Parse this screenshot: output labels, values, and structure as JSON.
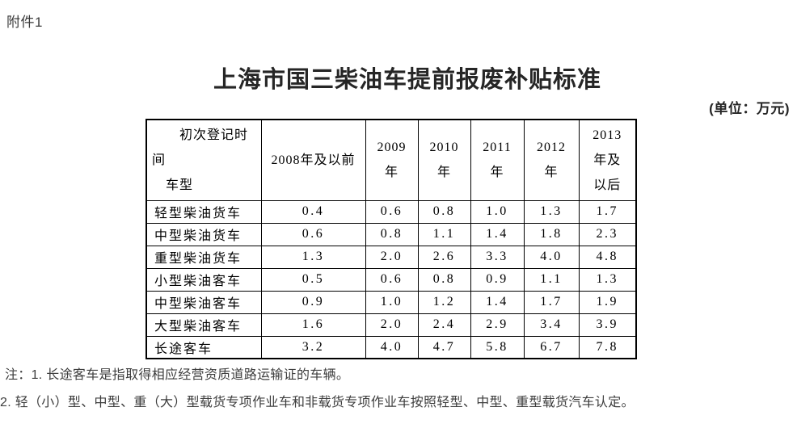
{
  "page": {
    "attachment_label": "附件1",
    "title": "上海市国三柴油车提前报废补贴标准",
    "unit_label": "(单位：万元)"
  },
  "table": {
    "corner_header": "　　初次登记时\n间\n　车型",
    "col_headers": [
      "2008年及以前",
      "2009\n年",
      "2010\n年",
      "2011\n年",
      "2012\n年",
      "2013\n年及\n以后"
    ],
    "rows": [
      {
        "label": "轻型柴油货车",
        "values": [
          "0.4",
          "0.6",
          "0.8",
          "1.0",
          "1.3",
          "1.7"
        ]
      },
      {
        "label": "中型柴油货车",
        "values": [
          "0.6",
          "0.8",
          "1.1",
          "1.4",
          "1.8",
          "2.3"
        ]
      },
      {
        "label": "重型柴油货车",
        "values": [
          "1.3",
          "2.0",
          "2.6",
          "3.3",
          "4.0",
          "4.8"
        ]
      },
      {
        "label": "小型柴油客车",
        "values": [
          "0.5",
          "0.6",
          "0.8",
          "0.9",
          "1.1",
          "1.3"
        ]
      },
      {
        "label": "中型柴油客车",
        "values": [
          "0.9",
          "1.0",
          "1.2",
          "1.4",
          "1.7",
          "1.9"
        ]
      },
      {
        "label": "大型柴油客车",
        "values": [
          "1.6",
          "2.0",
          "2.4",
          "2.9",
          "3.4",
          "3.9"
        ]
      },
      {
        "label": "长途客车",
        "values": [
          "3.2",
          "4.0",
          "4.7",
          "5.8",
          "6.7",
          "7.8"
        ]
      }
    ]
  },
  "notes": [
    "注：1. 长途客车是指取得相应经营资质道路运输证的车辆。",
    "2. 轻（小）型、中型、重（大）型载货专项作业车和非载货专项作业车按照轻型、中型、重型载货汽车认定。"
  ]
}
